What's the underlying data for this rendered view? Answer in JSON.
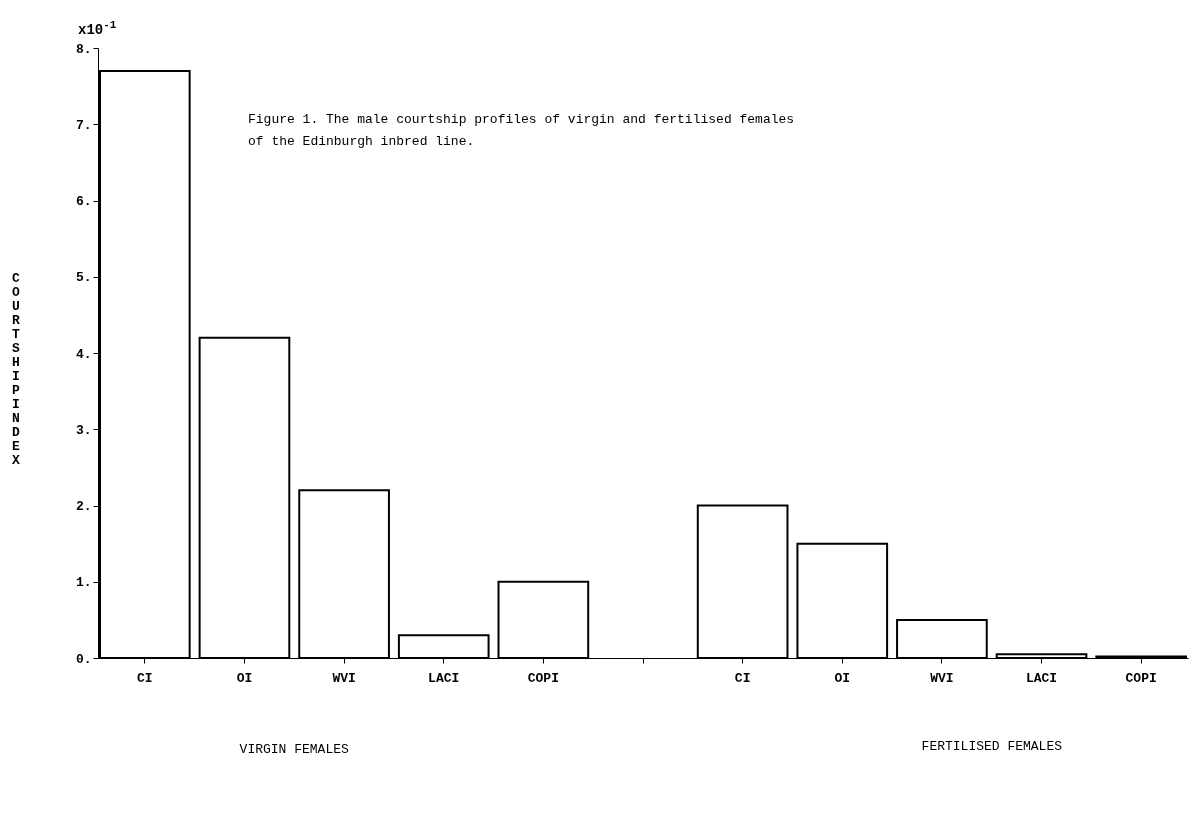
{
  "chart_data": {
    "type": "bar",
    "ylabel": "COURTSHIP INDEX",
    "categories": [
      "CI",
      "OI",
      "WVI",
      "LACI",
      "COPI",
      null,
      "CI",
      "OI",
      "WVI",
      "LACI",
      "COPI"
    ],
    "values": [
      7.7,
      4.2,
      2.2,
      0.3,
      1.0,
      null,
      2.0,
      1.5,
      0.5,
      0.05,
      0.02
    ],
    "color": "#ffffff",
    "ylim": [
      0,
      8
    ],
    "yticks": [
      {
        "value": 0,
        "label": "0."
      },
      {
        "value": 1,
        "label": "1."
      },
      {
        "value": 2,
        "label": "2."
      },
      {
        "value": 3,
        "label": "3."
      },
      {
        "value": 4,
        "label": "4."
      },
      {
        "value": 5,
        "label": "5."
      },
      {
        "value": 6,
        "label": "6."
      },
      {
        "value": 7,
        "label": "7."
      },
      {
        "value": 8,
        "label": "8."
      }
    ],
    "annotations": [
      "x10$^{-1}$",
      "Figure 1.  The male courtship profiles of virgin and fertilised females\n            of the Edinburgh inbred line.",
      "VIRGIN FEMALES",
      "FERTILISED FEMALES"
    ]
  }
}
